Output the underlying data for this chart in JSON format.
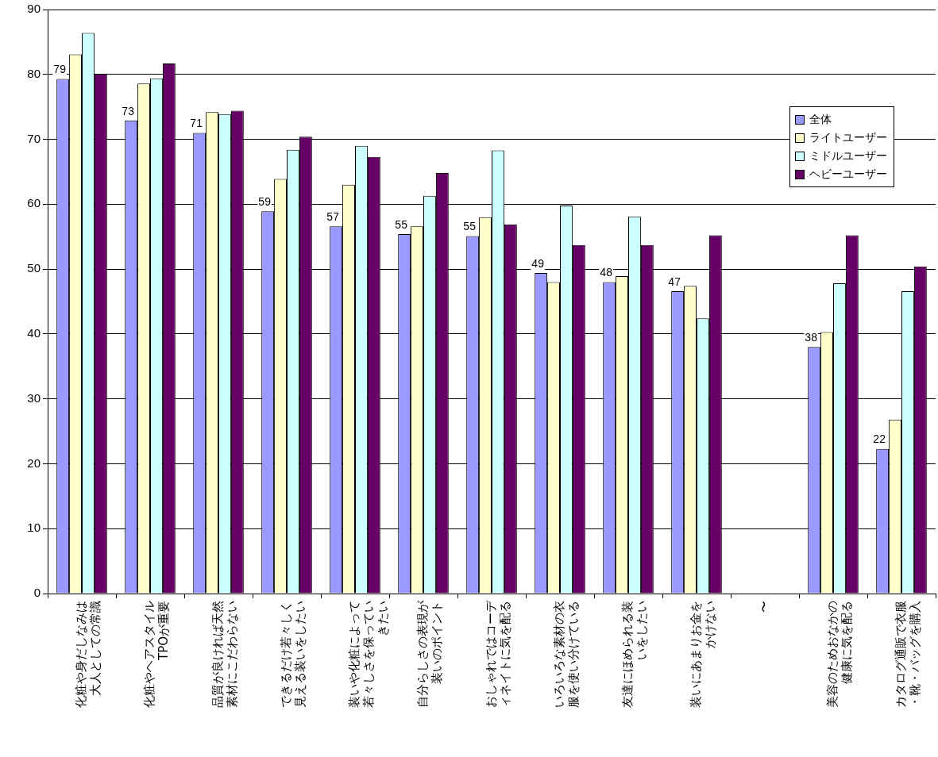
{
  "chart_data": {
    "type": "bar",
    "categories": [
      "化粧や身だしなみは大人としての常識",
      "化粧やヘアスタイルTPOが重要",
      "品質が良ければ天然素材にこだわらない",
      "できるだけ若々しく見える装いをしたい",
      "装いや化粧によって若々しさを保っていきたい",
      "自分らしさの表現が装いのポイント",
      "おしゃれではコーディネイトに気を配る",
      "いろいろな素材の衣服を使い分けている",
      "友達にほめられる装いをしたい",
      "装いにあまりお金をかけない",
      "〜",
      "美容のためおなかの健康に気を配る",
      "カタログ通販で衣服・靴・バッグを購入"
    ],
    "series": [
      {
        "name": "全体",
        "color": "#9999ff",
        "values": [
          79.3,
          72.9,
          71.0,
          58.9,
          56.6,
          55.4,
          55.1,
          49.4,
          48.0,
          46.6,
          null,
          38.0,
          22.3
        ],
        "value_labels": [
          "79",
          "73",
          "71",
          "59",
          "57",
          "55",
          "55",
          "49",
          "48",
          "47",
          null,
          "38",
          "22"
        ]
      },
      {
        "name": "ライトユーザー",
        "color": "#ffffcc",
        "values": [
          83.1,
          78.6,
          74.2,
          63.9,
          63.0,
          56.6,
          58.0,
          48.0,
          48.9,
          47.4,
          null,
          40.3,
          26.8
        ]
      },
      {
        "name": "ミドルユーザー",
        "color": "#ccffff",
        "values": [
          86.4,
          79.4,
          73.9,
          68.4,
          69.0,
          61.3,
          68.3,
          59.8,
          58.1,
          42.4,
          null,
          47.8,
          46.6
        ]
      },
      {
        "name": "ヘビーユーザー",
        "color": "#660066",
        "values": [
          80.1,
          81.7,
          74.4,
          70.4,
          67.3,
          64.8,
          56.9,
          53.7,
          53.7,
          55.2,
          null,
          55.2,
          50.4
        ]
      }
    ],
    "ylim": [
      0,
      90
    ],
    "yticks": [
      0,
      10,
      20,
      30,
      40,
      50,
      60,
      70,
      80,
      90
    ],
    "grid": "y",
    "legend": "right"
  }
}
